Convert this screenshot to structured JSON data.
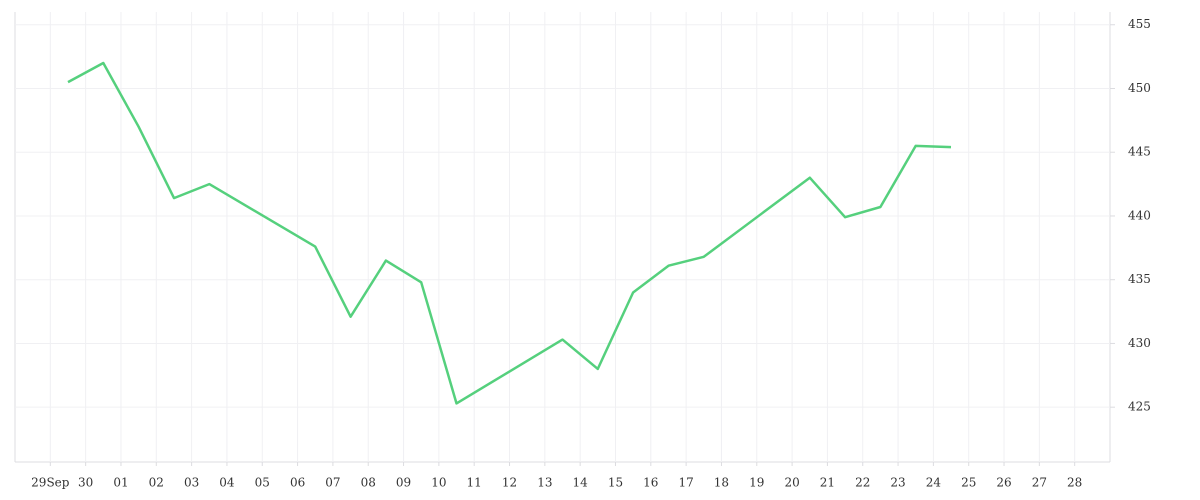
{
  "chart_data": {
    "type": "line",
    "categories": [
      "29Sep",
      "30",
      "01",
      "02",
      "03",
      "04",
      "05",
      "06",
      "07",
      "08",
      "09",
      "10",
      "11",
      "12",
      "13",
      "14",
      "15",
      "16",
      "17",
      "18",
      "19",
      "20",
      "21",
      "22",
      "23",
      "24",
      "25",
      "26",
      "27",
      "28"
    ],
    "series": [
      {
        "color": "#55d07d",
        "x": [
          "29Sep",
          "30",
          "01",
          "02",
          "03",
          "06",
          "07",
          "08",
          "09",
          "10",
          "13",
          "14",
          "15",
          "16",
          "17",
          "20",
          "21",
          "22",
          "23",
          "24"
        ],
        "values": [
          450.5,
          452,
          447,
          441.4,
          442.5,
          437.6,
          432.1,
          436.5,
          434.8,
          425.3,
          430.3,
          428,
          434,
          436.1,
          436.8,
          443,
          439.9,
          440.7,
          445.5,
          445.4
        ]
      }
    ],
    "ylim": [
      420.7,
      456
    ],
    "yticks": [
      425,
      430,
      435,
      440,
      445,
      450,
      455
    ],
    "grid": true
  }
}
